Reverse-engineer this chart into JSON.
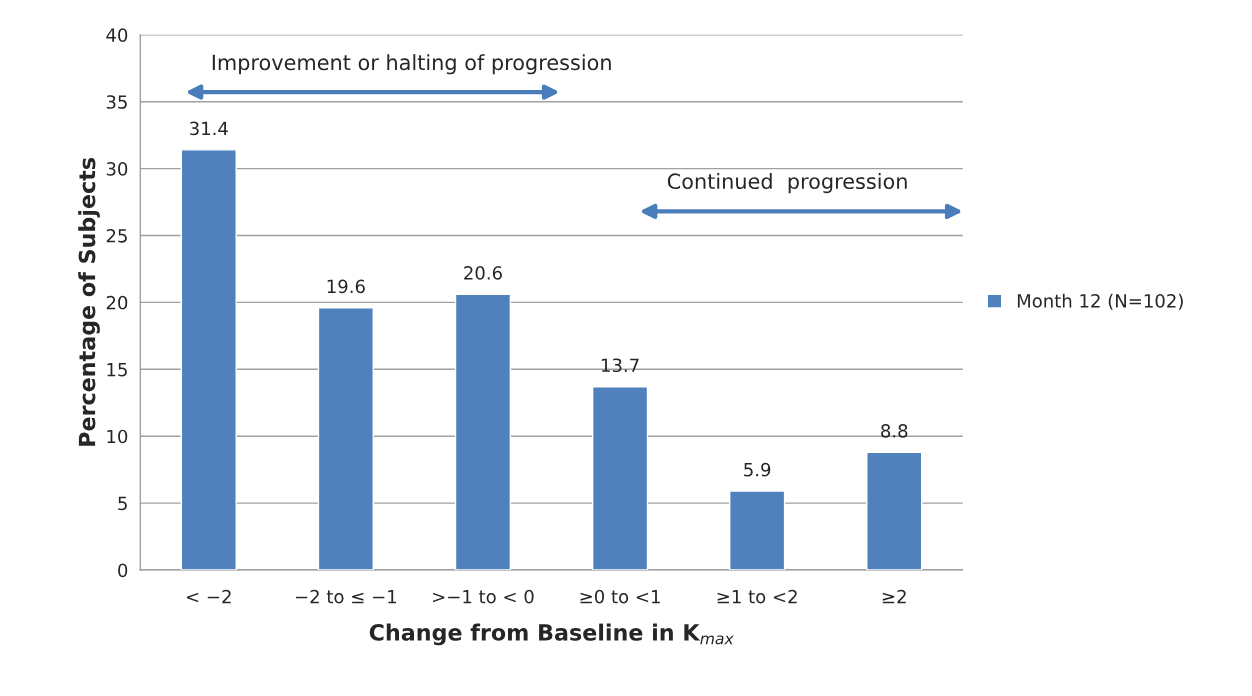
{
  "chart_data": {
    "type": "bar",
    "ylabel": "Percentage of Subjects",
    "xlabel": "Change from Baseline in K$_{max}$",
    "categories": [
      "< −2",
      "−2 to ≤ −1",
      ">−1 to < 0",
      "≥0 to <1",
      "≥1 to <2",
      "≥2"
    ],
    "series": [
      {
        "name": "Month 12 (N=102)",
        "color": "#4f81bd",
        "values": [
          31.4,
          19.6,
          20.6,
          13.7,
          5.9,
          8.8
        ]
      }
    ],
    "ylim": [
      0,
      40
    ],
    "yticks": [
      0,
      5,
      10,
      15,
      20,
      25,
      30,
      35,
      40
    ],
    "grid": "y",
    "legend": "right",
    "data_labels": true,
    "annotations": [
      "Improvement or halting of progression",
      "Continued  progression"
    ]
  }
}
